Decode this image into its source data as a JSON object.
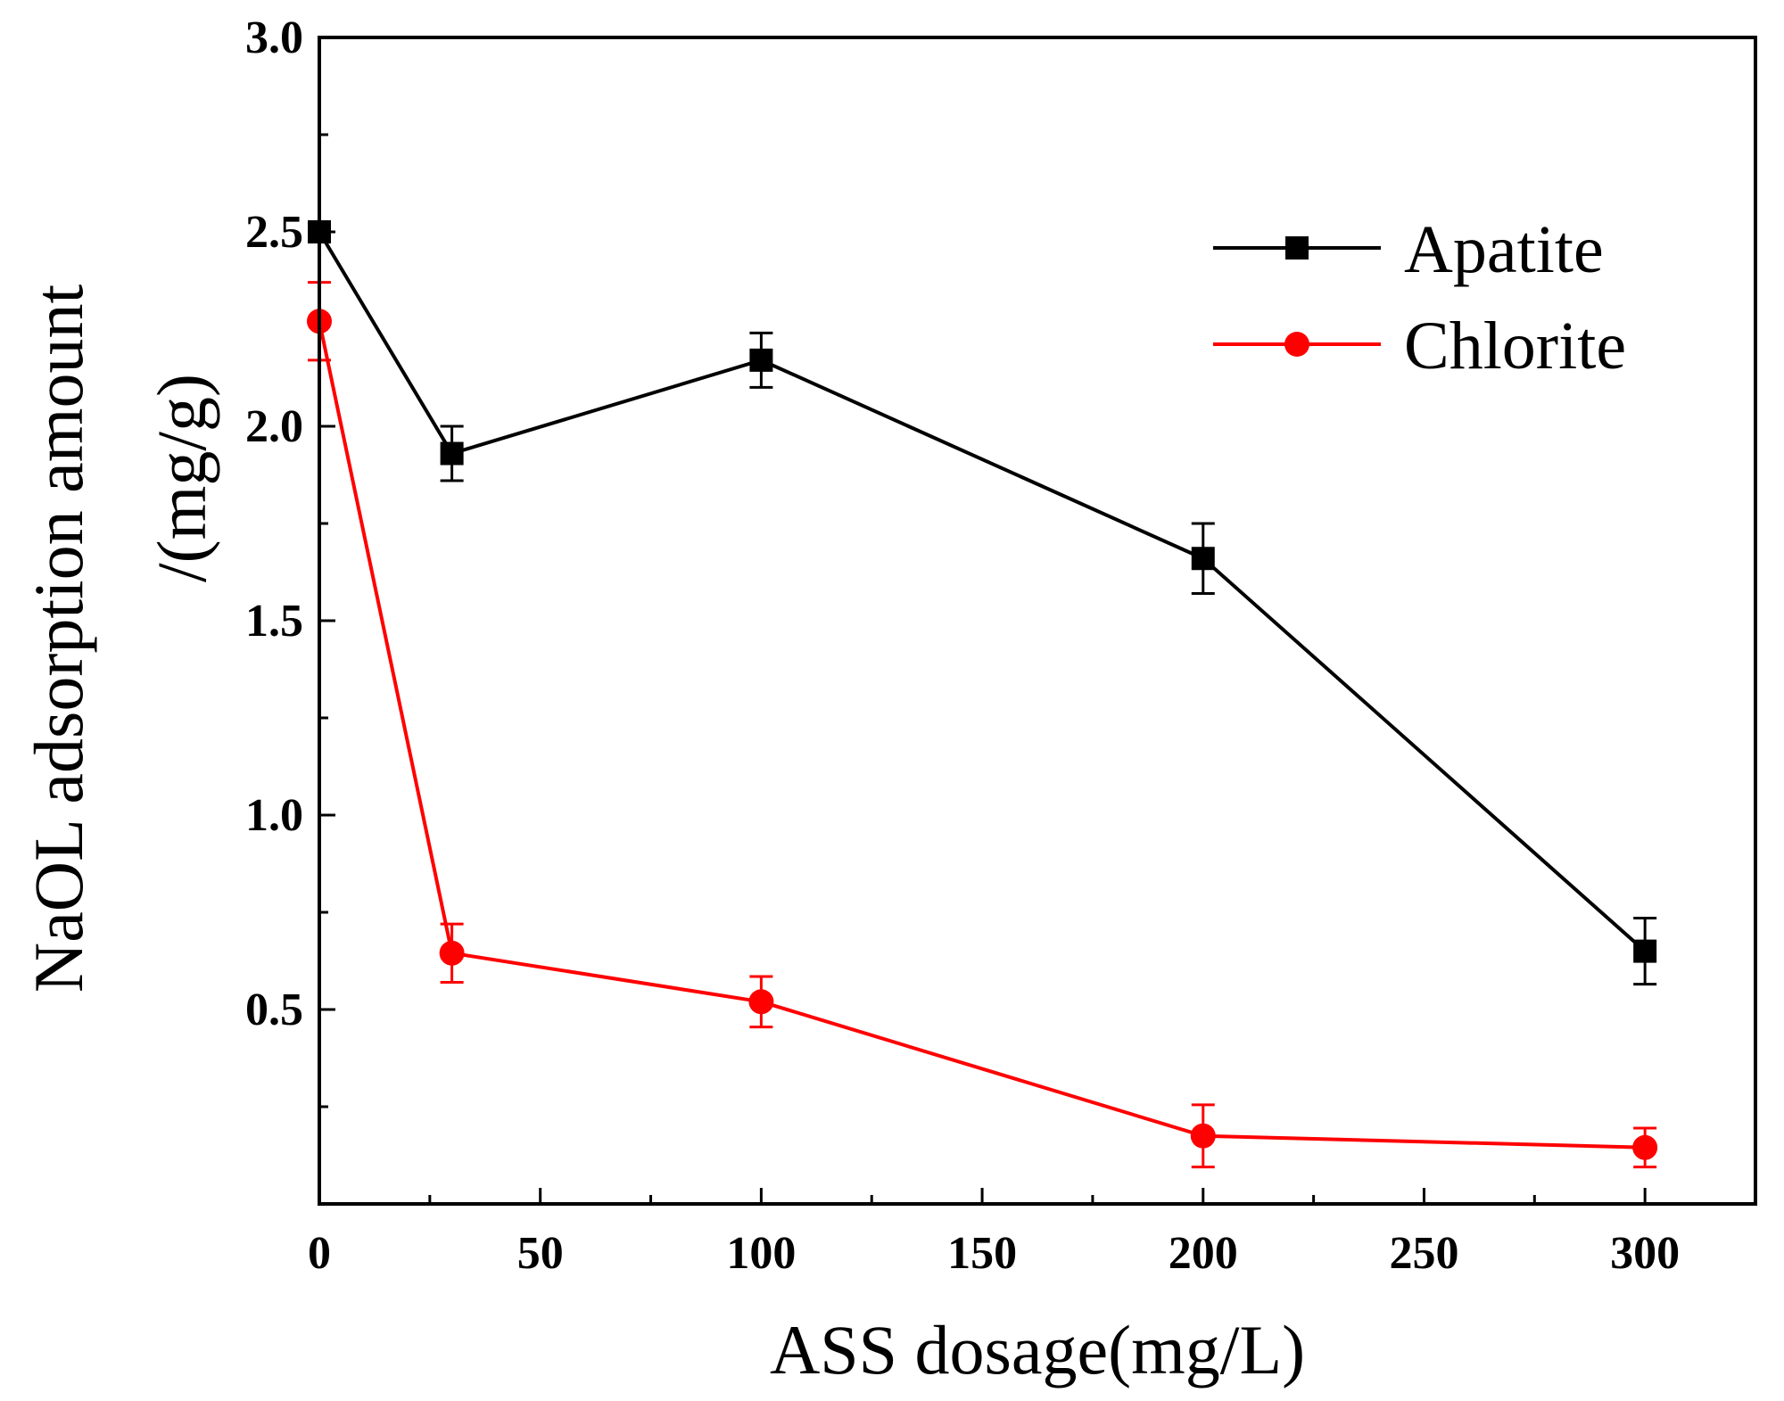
{
  "chart_data": {
    "type": "line",
    "title": "",
    "xlabel": "ASS dosage(mg/L)",
    "ylabel_line1": "NaOL adsorption amount",
    "ylabel_line2": "/(mg/g)",
    "xlim": [
      0,
      325
    ],
    "ylim": [
      0,
      3.0
    ],
    "x_ticks": [
      0,
      50,
      100,
      150,
      200,
      250,
      300
    ],
    "x_tick_labels": [
      "0",
      "50",
      "100",
      "150",
      "200",
      "250",
      "300"
    ],
    "x_minor_ticks": [
      25,
      75,
      125,
      175,
      225,
      275
    ],
    "y_ticks": [
      0.5,
      1.0,
      1.5,
      2.0,
      2.5,
      3.0
    ],
    "y_tick_labels": [
      "0.5",
      "1.0",
      "1.5",
      "2.0",
      "2.5",
      "3.0"
    ],
    "y_minor_ticks": [
      0.25,
      0.75,
      1.25,
      1.75,
      2.25,
      2.75
    ],
    "grid": false,
    "legend_position": "top-right",
    "x": [
      0,
      30,
      100,
      200,
      300
    ],
    "series": [
      {
        "name": "Apatite",
        "color": "#000000",
        "marker": "square",
        "values": [
          2.5,
          1.93,
          2.17,
          1.66,
          0.65
        ],
        "errors": [
          0.0,
          0.07,
          0.07,
          0.09,
          0.085
        ]
      },
      {
        "name": "Chlorite",
        "color": "#ff0000",
        "marker": "circle",
        "values": [
          2.27,
          0.645,
          0.52,
          0.175,
          0.145
        ],
        "errors": [
          0.1,
          0.075,
          0.065,
          0.08,
          0.05
        ]
      }
    ]
  }
}
